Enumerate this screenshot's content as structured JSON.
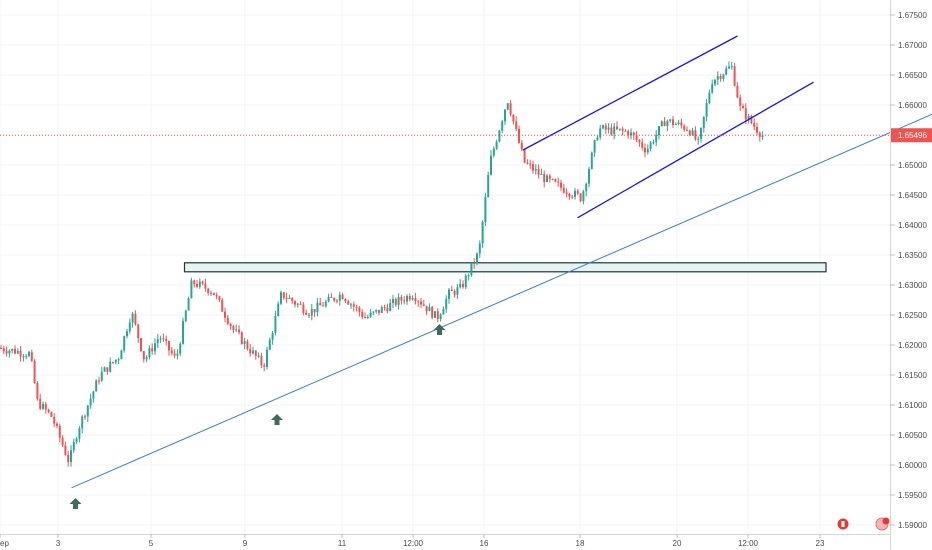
{
  "chart_data": {
    "type": "candlestick",
    "y_range": [
      1.5885,
      1.6775
    ],
    "y_ticks": [
      "1.67500",
      "1.67000",
      "1.66500",
      "1.66000",
      "1.65500",
      "1.65000",
      "1.64500",
      "1.64000",
      "1.63500",
      "1.63000",
      "1.62500",
      "1.62000",
      "1.61500",
      "1.61000",
      "1.60500",
      "1.60000",
      "1.59500",
      "1.59000"
    ],
    "x_ticks": [
      "ep",
      "3",
      "5",
      "9",
      "11",
      "12:00",
      "16",
      "18",
      "20",
      "12:00",
      "23"
    ],
    "last_price": {
      "label": "1.65496",
      "value": 1.65496
    },
    "colors": {
      "up": "#26a69a",
      "down": "#ef5350",
      "trendline": "#3d7fd6",
      "channel": "#1414e6",
      "zone_fill": "#e8f4f1",
      "zone_border": "#143a3a",
      "arrow": "#3e6b5e",
      "price_line": "#ef5350"
    },
    "series_anchor": [
      {
        "x": 0,
        "v": 1.6195
      },
      {
        "x": 0.06,
        "v": 1.6185
      },
      {
        "x": 0.075,
        "v": 1.6105
      },
      {
        "x": 0.104,
        "v": 1.608
      },
      {
        "x": 0.138,
        "v": 1.6005
      },
      {
        "x": 0.156,
        "v": 1.606
      },
      {
        "x": 0.2,
        "v": 1.615
      },
      {
        "x": 0.237,
        "v": 1.618
      },
      {
        "x": 0.263,
        "v": 1.6255
      },
      {
        "x": 0.289,
        "v": 1.6175
      },
      {
        "x": 0.319,
        "v": 1.6215
      },
      {
        "x": 0.352,
        "v": 1.6175
      },
      {
        "x": 0.384,
        "v": 1.6305
      },
      {
        "x": 0.425,
        "v": 1.629
      },
      {
        "x": 0.467,
        "v": 1.6225
      },
      {
        "x": 0.527,
        "v": 1.6165
      },
      {
        "x": 0.563,
        "v": 1.6285
      },
      {
        "x": 0.619,
        "v": 1.6255
      },
      {
        "x": 0.683,
        "v": 1.6285
      },
      {
        "x": 0.731,
        "v": 1.6245
      },
      {
        "x": 0.776,
        "v": 1.6265
      },
      {
        "x": 0.826,
        "v": 1.6285
      },
      {
        "x": 0.874,
        "v": 1.6245
      },
      {
        "x": 0.898,
        "v": 1.6285
      },
      {
        "x": 0.922,
        "v": 1.6295
      },
      {
        "x": 0.958,
        "v": 1.6355
      },
      {
        "x": 0.98,
        "v": 1.6505
      },
      {
        "x": 1.015,
        "v": 1.661
      },
      {
        "x": 1.048,
        "v": 1.6505
      },
      {
        "x": 1.093,
        "v": 1.6475
      },
      {
        "x": 1.163,
        "v": 1.6445
      },
      {
        "x": 1.197,
        "v": 1.656
      },
      {
        "x": 1.257,
        "v": 1.6555
      },
      {
        "x": 1.293,
        "v": 1.6525
      },
      {
        "x": 1.331,
        "v": 1.6575
      },
      {
        "x": 1.378,
        "v": 1.656
      },
      {
        "x": 1.397,
        "v": 1.6535
      },
      {
        "x": 1.423,
        "v": 1.664
      },
      {
        "x": 1.463,
        "v": 1.6665
      },
      {
        "x": 1.48,
        "v": 1.6595
      },
      {
        "x": 1.508,
        "v": 1.6565
      },
      {
        "x": 1.53,
        "v": 1.6545
      }
    ],
    "annotations": {
      "trendline": {
        "from": {
          "x": 0.143,
          "v": 1.5962
        },
        "to": {
          "x": 1.893,
          "v": 1.6595
        }
      },
      "channel_upper": {
        "from": {
          "x": 1.046,
          "v": 1.6525
        },
        "to": {
          "x": 1.475,
          "v": 1.6715
        }
      },
      "channel_lower": {
        "from": {
          "x": 1.155,
          "v": 1.6412
        },
        "to": {
          "x": 1.627,
          "v": 1.6638
        }
      },
      "resistance_zone": {
        "x_from": 0.369,
        "x_to": 1.652,
        "v_from": 1.6337,
        "v_to": 1.6322
      },
      "arrows": [
        {
          "x": 0.151,
          "v": 1.5935
        },
        {
          "x": 0.554,
          "v": 1.6075
        },
        {
          "x": 0.879,
          "v": 1.6225
        }
      ]
    }
  }
}
